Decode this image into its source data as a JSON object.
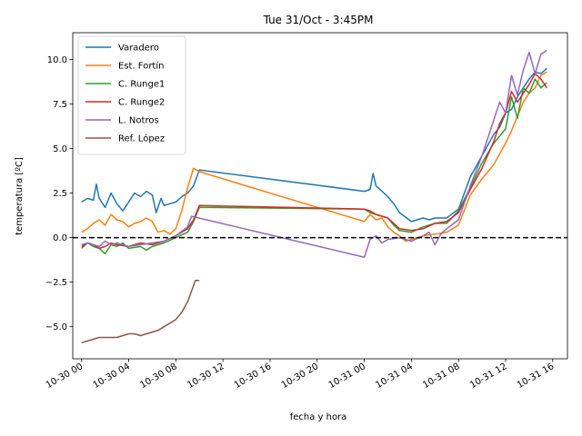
{
  "chart_data": {
    "type": "line",
    "title": "Tue 31/Oct - 3:45PM",
    "xlabel": "fecha y hora",
    "ylabel": "temperatura [ºC]",
    "xlim": [
      "2023-10-29T23:15",
      "2023-10-31T17:15"
    ],
    "ylim": [
      -6.8,
      11.5
    ],
    "x_ticks": [
      "10-30 00",
      "10-30 04",
      "10-30 08",
      "10-30 12",
      "10-30 16",
      "10-30 20",
      "10-31 00",
      "10-31 04",
      "10-31 08",
      "10-31 12",
      "10-31 16"
    ],
    "y_ticks": [
      -5.0,
      -2.5,
      0.0,
      2.5,
      5.0,
      7.5,
      10.0
    ],
    "reference_line": {
      "y": 0.0,
      "style": "dashed",
      "color": "#000000"
    },
    "legend_position": "upper-left",
    "series": [
      {
        "name": "Varadero",
        "color": "#1f77b4",
        "points": [
          [
            "2023-10-30T00:00",
            2.0
          ],
          [
            "2023-10-30T00:30",
            2.2
          ],
          [
            "2023-10-30T01:00",
            2.1
          ],
          [
            "2023-10-30T01:15",
            3.0
          ],
          [
            "2023-10-30T01:30",
            2.2
          ],
          [
            "2023-10-30T02:00",
            1.7
          ],
          [
            "2023-10-30T02:30",
            2.5
          ],
          [
            "2023-10-30T03:00",
            1.9
          ],
          [
            "2023-10-30T03:30",
            1.5
          ],
          [
            "2023-10-30T04:00",
            2.0
          ],
          [
            "2023-10-30T04:30",
            2.5
          ],
          [
            "2023-10-30T05:00",
            2.3
          ],
          [
            "2023-10-30T05:30",
            2.6
          ],
          [
            "2023-10-30T06:00",
            2.4
          ],
          [
            "2023-10-30T06:20",
            1.4
          ],
          [
            "2023-10-30T06:45",
            2.2
          ],
          [
            "2023-10-30T07:00",
            1.8
          ],
          [
            "2023-10-30T07:30",
            1.9
          ],
          [
            "2023-10-30T08:00",
            2.0
          ],
          [
            "2023-10-30T08:30",
            2.3
          ],
          [
            "2023-10-30T09:00",
            2.5
          ],
          [
            "2023-10-30T09:30",
            2.9
          ],
          [
            "2023-10-30T10:00",
            3.8
          ],
          [
            "2023-10-31T00:00",
            2.6
          ],
          [
            "2023-10-31T00:30",
            2.7
          ],
          [
            "2023-10-31T00:45",
            3.6
          ],
          [
            "2023-10-31T01:00",
            2.9
          ],
          [
            "2023-10-31T01:30",
            2.6
          ],
          [
            "2023-10-31T02:00",
            2.3
          ],
          [
            "2023-10-31T02:30",
            1.9
          ],
          [
            "2023-10-31T03:00",
            1.4
          ],
          [
            "2023-10-31T04:00",
            0.9
          ],
          [
            "2023-10-31T05:00",
            1.1
          ],
          [
            "2023-10-31T05:30",
            1.0
          ],
          [
            "2023-10-31T06:00",
            1.1
          ],
          [
            "2023-10-31T07:00",
            1.1
          ],
          [
            "2023-10-31T08:00",
            1.6
          ],
          [
            "2023-10-31T09:00",
            3.4
          ],
          [
            "2023-10-31T10:00",
            4.6
          ],
          [
            "2023-10-31T11:00",
            5.8
          ],
          [
            "2023-10-31T11:30",
            6.2
          ],
          [
            "2023-10-31T12:00",
            7.0
          ],
          [
            "2023-10-31T12:30",
            7.2
          ],
          [
            "2023-10-31T13:00",
            7.9
          ],
          [
            "2023-10-31T13:30",
            8.4
          ],
          [
            "2023-10-31T14:00",
            8.9
          ],
          [
            "2023-10-31T14:30",
            9.3
          ],
          [
            "2023-10-31T15:00",
            9.2
          ],
          [
            "2023-10-31T15:30",
            9.5
          ]
        ]
      },
      {
        "name": "Est. Fortín",
        "color": "#ff7f0e",
        "points": [
          [
            "2023-10-30T00:00",
            0.3
          ],
          [
            "2023-10-30T00:30",
            0.5
          ],
          [
            "2023-10-30T01:00",
            0.8
          ],
          [
            "2023-10-30T01:30",
            1.0
          ],
          [
            "2023-10-30T02:00",
            0.7
          ],
          [
            "2023-10-30T02:30",
            1.3
          ],
          [
            "2023-10-30T03:00",
            1.0
          ],
          [
            "2023-10-30T03:30",
            0.9
          ],
          [
            "2023-10-30T04:00",
            0.6
          ],
          [
            "2023-10-30T04:30",
            0.8
          ],
          [
            "2023-10-30T05:00",
            0.9
          ],
          [
            "2023-10-30T05:30",
            1.1
          ],
          [
            "2023-10-30T06:00",
            0.9
          ],
          [
            "2023-10-30T06:30",
            0.3
          ],
          [
            "2023-10-30T07:00",
            0.4
          ],
          [
            "2023-10-30T07:30",
            0.2
          ],
          [
            "2023-10-30T08:00",
            0.5
          ],
          [
            "2023-10-30T08:30",
            1.5
          ],
          [
            "2023-10-30T09:00",
            2.8
          ],
          [
            "2023-10-30T09:30",
            3.9
          ],
          [
            "2023-10-30T10:00",
            3.7
          ],
          [
            "2023-10-31T00:00",
            0.9
          ],
          [
            "2023-10-31T00:30",
            1.3
          ],
          [
            "2023-10-31T01:00",
            1.0
          ],
          [
            "2023-10-31T01:30",
            1.1
          ],
          [
            "2023-10-31T02:00",
            0.6
          ],
          [
            "2023-10-31T02:30",
            0.3
          ],
          [
            "2023-10-31T03:00",
            0.1
          ],
          [
            "2023-10-31T03:30",
            -0.2
          ],
          [
            "2023-10-31T04:00",
            -0.1
          ],
          [
            "2023-10-31T05:00",
            0.1
          ],
          [
            "2023-10-31T06:00",
            0.2
          ],
          [
            "2023-10-31T07:00",
            0.3
          ],
          [
            "2023-10-31T08:00",
            0.7
          ],
          [
            "2023-10-31T09:00",
            2.4
          ],
          [
            "2023-10-31T10:00",
            3.3
          ],
          [
            "2023-10-31T11:00",
            4.1
          ],
          [
            "2023-10-31T12:00",
            5.3
          ],
          [
            "2023-10-31T12:30",
            6.0
          ],
          [
            "2023-10-31T13:00",
            6.8
          ],
          [
            "2023-10-31T13:30",
            7.6
          ],
          [
            "2023-10-31T14:00",
            8.1
          ],
          [
            "2023-10-31T14:30",
            8.4
          ],
          [
            "2023-10-31T15:00",
            9.1
          ],
          [
            "2023-10-31T15:30",
            9.3
          ]
        ]
      },
      {
        "name": "C. Runge1",
        "color": "#2ca02c",
        "points": [
          [
            "2023-10-30T00:00",
            -0.6
          ],
          [
            "2023-10-30T00:30",
            -0.3
          ],
          [
            "2023-10-30T01:00",
            -0.5
          ],
          [
            "2023-10-30T01:30",
            -0.6
          ],
          [
            "2023-10-30T02:00",
            -0.9
          ],
          [
            "2023-10-30T02:30",
            -0.4
          ],
          [
            "2023-10-30T03:00",
            -0.5
          ],
          [
            "2023-10-30T03:30",
            -0.3
          ],
          [
            "2023-10-30T04:00",
            -0.6
          ],
          [
            "2023-10-30T05:00",
            -0.5
          ],
          [
            "2023-10-30T05:30",
            -0.7
          ],
          [
            "2023-10-30T06:00",
            -0.5
          ],
          [
            "2023-10-30T07:00",
            -0.3
          ],
          [
            "2023-10-30T08:00",
            0.0
          ],
          [
            "2023-10-30T09:00",
            0.3
          ],
          [
            "2023-10-30T09:30",
            0.9
          ],
          [
            "2023-10-30T10:00",
            1.7
          ],
          [
            "2023-10-31T00:00",
            1.6
          ],
          [
            "2023-10-31T00:30",
            1.4
          ],
          [
            "2023-10-31T01:00",
            1.3
          ],
          [
            "2023-10-31T02:00",
            1.1
          ],
          [
            "2023-10-31T02:30",
            0.7
          ],
          [
            "2023-10-31T03:00",
            0.4
          ],
          [
            "2023-10-31T04:00",
            0.3
          ],
          [
            "2023-10-31T05:00",
            0.6
          ],
          [
            "2023-10-31T06:00",
            0.8
          ],
          [
            "2023-10-31T07:00",
            0.8
          ],
          [
            "2023-10-31T08:00",
            1.5
          ],
          [
            "2023-10-31T09:00",
            2.8
          ],
          [
            "2023-10-31T10:00",
            4.2
          ],
          [
            "2023-10-31T11:00",
            5.3
          ],
          [
            "2023-10-31T12:00",
            6.1
          ],
          [
            "2023-10-31T12:30",
            7.9
          ],
          [
            "2023-10-31T13:00",
            6.7
          ],
          [
            "2023-10-31T13:30",
            8.4
          ],
          [
            "2023-10-31T14:00",
            8.1
          ],
          [
            "2023-10-31T14:30",
            8.9
          ],
          [
            "2023-10-31T15:00",
            8.4
          ],
          [
            "2023-10-31T15:30",
            8.7
          ]
        ]
      },
      {
        "name": "C. Runge2",
        "color": "#d62728",
        "points": [
          [
            "2023-10-30T00:00",
            -0.5
          ],
          [
            "2023-10-30T00:30",
            -0.3
          ],
          [
            "2023-10-30T01:00",
            -0.4
          ],
          [
            "2023-10-30T01:30",
            -0.6
          ],
          [
            "2023-10-30T02:00",
            -0.5
          ],
          [
            "2023-10-30T02:30",
            -0.3
          ],
          [
            "2023-10-30T03:00",
            -0.4
          ],
          [
            "2023-10-30T04:00",
            -0.5
          ],
          [
            "2023-10-30T05:00",
            -0.3
          ],
          [
            "2023-10-30T06:00",
            -0.4
          ],
          [
            "2023-10-30T07:00",
            -0.2
          ],
          [
            "2023-10-30T08:00",
            0.1
          ],
          [
            "2023-10-30T09:00",
            0.5
          ],
          [
            "2023-10-30T09:30",
            1.0
          ],
          [
            "2023-10-30T10:00",
            1.8
          ],
          [
            "2023-10-31T00:00",
            1.6
          ],
          [
            "2023-10-31T00:30",
            1.5
          ],
          [
            "2023-10-31T01:00",
            1.3
          ],
          [
            "2023-10-31T02:00",
            1.1
          ],
          [
            "2023-10-31T03:00",
            0.5
          ],
          [
            "2023-10-31T04:00",
            0.4
          ],
          [
            "2023-10-31T05:00",
            0.5
          ],
          [
            "2023-10-31T06:00",
            0.8
          ],
          [
            "2023-10-31T07:00",
            0.9
          ],
          [
            "2023-10-31T08:00",
            1.4
          ],
          [
            "2023-10-31T09:00",
            2.7
          ],
          [
            "2023-10-31T10:00",
            3.9
          ],
          [
            "2023-10-31T11:00",
            5.4
          ],
          [
            "2023-10-31T11:30",
            6.4
          ],
          [
            "2023-10-31T12:00",
            7.0
          ],
          [
            "2023-10-31T12:30",
            8.2
          ],
          [
            "2023-10-31T13:00",
            7.6
          ],
          [
            "2023-10-31T13:30",
            8.1
          ],
          [
            "2023-10-31T14:00",
            8.6
          ],
          [
            "2023-10-31T14:30",
            9.2
          ],
          [
            "2023-10-31T15:00",
            8.9
          ],
          [
            "2023-10-31T15:30",
            8.4
          ]
        ]
      },
      {
        "name": "L. Notros",
        "color": "#9467bd",
        "points": [
          [
            "2023-10-30T00:00",
            -0.4
          ],
          [
            "2023-10-30T00:30",
            -0.3
          ],
          [
            "2023-10-30T01:00",
            -0.4
          ],
          [
            "2023-10-30T01:30",
            -0.5
          ],
          [
            "2023-10-30T02:00",
            -0.2
          ],
          [
            "2023-10-30T02:30",
            -0.4
          ],
          [
            "2023-10-30T03:00",
            -0.3
          ],
          [
            "2023-10-30T04:00",
            -0.5
          ],
          [
            "2023-10-30T05:00",
            -0.4
          ],
          [
            "2023-10-30T06:00",
            -0.3
          ],
          [
            "2023-10-30T07:00",
            -0.2
          ],
          [
            "2023-10-30T08:00",
            0.1
          ],
          [
            "2023-10-30T09:00",
            0.6
          ],
          [
            "2023-10-30T09:20",
            1.2
          ],
          [
            "2023-10-31T00:00",
            -1.1
          ],
          [
            "2023-10-31T00:30",
            -0.1
          ],
          [
            "2023-10-31T01:00",
            0.1
          ],
          [
            "2023-10-31T01:30",
            -0.3
          ],
          [
            "2023-10-31T02:00",
            -0.1
          ],
          [
            "2023-10-31T03:00",
            0.0
          ],
          [
            "2023-10-31T04:00",
            -0.2
          ],
          [
            "2023-10-31T05:00",
            0.1
          ],
          [
            "2023-10-31T05:30",
            0.3
          ],
          [
            "2023-10-31T06:00",
            -0.4
          ],
          [
            "2023-10-31T06:30",
            0.2
          ],
          [
            "2023-10-31T07:00",
            0.5
          ],
          [
            "2023-10-31T08:00",
            1.0
          ],
          [
            "2023-10-31T09:00",
            2.9
          ],
          [
            "2023-10-31T10:00",
            4.6
          ],
          [
            "2023-10-31T11:00",
            6.6
          ],
          [
            "2023-10-31T11:30",
            7.6
          ],
          [
            "2023-10-31T12:00",
            7.0
          ],
          [
            "2023-10-31T12:30",
            9.1
          ],
          [
            "2023-10-31T13:00",
            8.0
          ],
          [
            "2023-10-31T13:30",
            9.4
          ],
          [
            "2023-10-31T14:00",
            10.4
          ],
          [
            "2023-10-31T14:30",
            9.2
          ],
          [
            "2023-10-31T15:00",
            10.3
          ],
          [
            "2023-10-31T15:30",
            10.5
          ]
        ]
      },
      {
        "name": "Ref. López",
        "color": "#8c564b",
        "points": [
          [
            "2023-10-30T00:00",
            -5.9
          ],
          [
            "2023-10-30T00:30",
            -5.8
          ],
          [
            "2023-10-30T01:00",
            -5.7
          ],
          [
            "2023-10-30T01:30",
            -5.6
          ],
          [
            "2023-10-30T02:00",
            -5.6
          ],
          [
            "2023-10-30T02:30",
            -5.6
          ],
          [
            "2023-10-30T03:00",
            -5.6
          ],
          [
            "2023-10-30T03:30",
            -5.5
          ],
          [
            "2023-10-30T04:00",
            -5.4
          ],
          [
            "2023-10-30T04:30",
            -5.4
          ],
          [
            "2023-10-30T05:00",
            -5.5
          ],
          [
            "2023-10-30T05:30",
            -5.4
          ],
          [
            "2023-10-30T06:00",
            -5.3
          ],
          [
            "2023-10-30T06:30",
            -5.2
          ],
          [
            "2023-10-30T07:00",
            -5.0
          ],
          [
            "2023-10-30T07:30",
            -4.8
          ],
          [
            "2023-10-30T08:00",
            -4.6
          ],
          [
            "2023-10-30T08:30",
            -4.2
          ],
          [
            "2023-10-30T09:00",
            -3.6
          ],
          [
            "2023-10-30T09:20",
            -3.0
          ],
          [
            "2023-10-30T09:40",
            -2.4
          ],
          [
            "2023-10-30T10:00",
            -2.4
          ]
        ]
      }
    ]
  }
}
